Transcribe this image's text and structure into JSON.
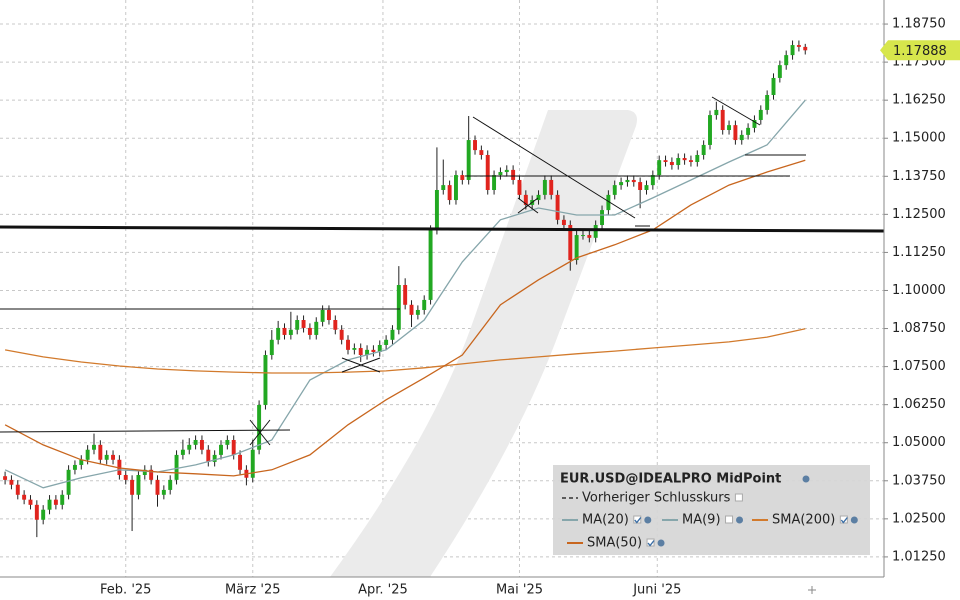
{
  "chart_data": {
    "type": "candlestick",
    "title": "EUR.USD@IDEALPRO MidPoint",
    "x": [
      0,
      1,
      2,
      3,
      4,
      5,
      6,
      7,
      8,
      9,
      10,
      11,
      12,
      13,
      14,
      15,
      16,
      17,
      18,
      19,
      20,
      21,
      22,
      23,
      24,
      25,
      26,
      27,
      28,
      29,
      30,
      31,
      32,
      33,
      34,
      35,
      36,
      37,
      38,
      39,
      40,
      41,
      42,
      43,
      44,
      45,
      46,
      47,
      48,
      49,
      50,
      51,
      52,
      53,
      54,
      55,
      56,
      57,
      58,
      59,
      60,
      61,
      62,
      63,
      64,
      65,
      66,
      67,
      68,
      69,
      70,
      71,
      72,
      73,
      74,
      75,
      76,
      77,
      78,
      79,
      80,
      81,
      82,
      83,
      84,
      85,
      86,
      87,
      88,
      89,
      90,
      91,
      92,
      93,
      94,
      95,
      96,
      97,
      98,
      99,
      100,
      101,
      102,
      103,
      104,
      105,
      106,
      107,
      108,
      109,
      110,
      111,
      112,
      113,
      114,
      115,
      116,
      117,
      118,
      119,
      120,
      121,
      122,
      123,
      124,
      125,
      126
    ],
    "open": [
      1.039,
      1.0378,
      1.0362,
      1.0329,
      1.0313,
      1.0296,
      1.0247,
      1.028,
      1.0313,
      1.0296,
      1.0329,
      1.0411,
      1.0427,
      1.0444,
      1.0477,
      1.0493,
      1.0444,
      1.046,
      1.0444,
      1.0394,
      1.0378,
      1.0329,
      1.0394,
      1.0411,
      1.0378,
      1.0329,
      1.0345,
      1.0378,
      1.046,
      1.0477,
      1.0493,
      1.0509,
      1.0477,
      1.0437,
      1.046,
      1.0493,
      1.0509,
      1.046,
      1.0411,
      1.0385,
      1.0477,
      1.0624,
      1.0788,
      1.0838,
      1.0877,
      1.0854,
      1.0871,
      1.0903,
      1.0877,
      1.0854,
      1.0897,
      1.0936,
      1.0903,
      1.0871,
      1.0838,
      1.0805,
      1.0811,
      1.0788,
      1.0805,
      1.0798,
      1.0821,
      1.0838,
      1.0871,
      1.1018,
      1.0953,
      1.092,
      1.0936,
      1.0969,
      1.1199,
      1.133,
      1.1346,
      1.1297,
      1.1379,
      1.1363,
      1.1494,
      1.1461,
      1.1445,
      1.133,
      1.1379,
      1.1389,
      1.1396,
      1.1363,
      1.1314,
      1.1281,
      1.1297,
      1.1314,
      1.1363,
      1.1314,
      1.1232,
      1.1215,
      1.11,
      1.1182,
      1.1182,
      1.1173,
      1.1215,
      1.1264,
      1.1314,
      1.1346,
      1.1356,
      1.1363,
      1.1356,
      1.133,
      1.1346,
      1.1379,
      1.1428,
      1.1422,
      1.1412,
      1.1435,
      1.1428,
      1.1422,
      1.1445,
      1.1478,
      1.1576,
      1.1593,
      1.1527,
      1.1543,
      1.1494,
      1.1511,
      1.1534,
      1.156,
      1.1593,
      1.1642,
      1.1698,
      1.174,
      1.1773,
      1.1806,
      1.18
    ],
    "high": [
      1.0405,
      1.0393,
      1.0377,
      1.0344,
      1.0328,
      1.0311,
      1.0295,
      1.0328,
      1.0328,
      1.0344,
      1.0426,
      1.0442,
      1.0459,
      1.0492,
      1.053,
      1.0508,
      1.0475,
      1.0475,
      1.0459,
      1.0409,
      1.0393,
      1.0409,
      1.0426,
      1.0426,
      1.0393,
      1.036,
      1.0393,
      1.0475,
      1.051,
      1.0515,
      1.0524,
      1.0524,
      1.0492,
      1.0475,
      1.0508,
      1.0524,
      1.0524,
      1.0475,
      1.0426,
      1.051,
      1.0639,
      1.0803,
      1.087,
      1.09,
      1.0892,
      1.093,
      1.0918,
      1.0918,
      1.0892,
      1.0912,
      1.0951,
      1.0951,
      1.0918,
      1.0886,
      1.0853,
      1.0826,
      1.0826,
      1.082,
      1.082,
      1.0836,
      1.0853,
      1.0886,
      1.108,
      1.104,
      1.0968,
      1.0951,
      1.0984,
      1.1214,
      1.147,
      1.143,
      1.1361,
      1.1394,
      1.1394,
      1.1573,
      1.1509,
      1.1476,
      1.146,
      1.1394,
      1.1404,
      1.1411,
      1.1411,
      1.1378,
      1.1329,
      1.1312,
      1.1329,
      1.1378,
      1.1378,
      1.1329,
      1.1247,
      1.123,
      1.1197,
      1.1197,
      1.1197,
      1.123,
      1.1279,
      1.1329,
      1.1361,
      1.1371,
      1.1378,
      1.1378,
      1.1371,
      1.1361,
      1.1394,
      1.1443,
      1.1443,
      1.1437,
      1.145,
      1.145,
      1.1443,
      1.146,
      1.1493,
      1.1591,
      1.162,
      1.1608,
      1.1558,
      1.1558,
      1.1526,
      1.1549,
      1.1575,
      1.1608,
      1.1657,
      1.1713,
      1.1755,
      1.1788,
      1.1821,
      1.1821,
      1.181
    ],
    "low": [
      1.0363,
      1.0347,
      1.0314,
      1.0298,
      1.0281,
      1.019,
      1.0232,
      1.0265,
      1.0281,
      1.0281,
      1.0314,
      1.0396,
      1.0412,
      1.0429,
      1.0462,
      1.0429,
      1.0429,
      1.0429,
      1.0379,
      1.0363,
      1.021,
      1.0314,
      1.0379,
      1.0363,
      1.029,
      1.0314,
      1.033,
      1.0363,
      1.0445,
      1.0462,
      1.0478,
      1.0462,
      1.0422,
      1.0422,
      1.0445,
      1.0478,
      1.0445,
      1.0396,
      1.036,
      1.037,
      1.0462,
      1.0609,
      1.0773,
      1.0823,
      1.0839,
      1.0839,
      1.0856,
      1.0862,
      1.0839,
      1.0839,
      1.0882,
      1.0888,
      1.0856,
      1.0823,
      1.079,
      1.079,
      1.0765,
      1.0773,
      1.0783,
      1.0783,
      1.0806,
      1.0823,
      1.0856,
      1.0938,
      1.088,
      1.0905,
      1.0921,
      1.0954,
      1.1184,
      1.1315,
      1.1282,
      1.1282,
      1.1348,
      1.1348,
      1.1446,
      1.143,
      1.1315,
      1.1315,
      1.1364,
      1.1374,
      1.1348,
      1.1299,
      1.1266,
      1.1266,
      1.1282,
      1.1299,
      1.1299,
      1.1217,
      1.12,
      1.1065,
      1.1085,
      1.1167,
      1.1158,
      1.1158,
      1.12,
      1.1249,
      1.1299,
      1.1331,
      1.1341,
      1.1341,
      1.127,
      1.1315,
      1.1331,
      1.1364,
      1.1407,
      1.1397,
      1.1397,
      1.1413,
      1.1407,
      1.1407,
      1.143,
      1.1463,
      1.1561,
      1.1512,
      1.1512,
      1.1479,
      1.1479,
      1.1496,
      1.1519,
      1.1545,
      1.1578,
      1.1627,
      1.1683,
      1.1725,
      1.1758,
      1.1785,
      1.1775
    ],
    "close": [
      1.0378,
      1.0362,
      1.0329,
      1.0313,
      1.0296,
      1.0247,
      1.028,
      1.0313,
      1.0296,
      1.0329,
      1.0411,
      1.0427,
      1.0444,
      1.0477,
      1.0493,
      1.0444,
      1.046,
      1.0444,
      1.0394,
      1.0378,
      1.0329,
      1.0394,
      1.0411,
      1.0378,
      1.0329,
      1.0345,
      1.0378,
      1.046,
      1.0477,
      1.0493,
      1.0509,
      1.0477,
      1.0437,
      1.046,
      1.0493,
      1.0509,
      1.046,
      1.0411,
      1.0385,
      1.0477,
      1.0624,
      1.0788,
      1.0838,
      1.0877,
      1.0854,
      1.0871,
      1.0903,
      1.0877,
      1.0854,
      1.0897,
      1.0936,
      1.0903,
      1.0871,
      1.0838,
      1.0805,
      1.0811,
      1.0788,
      1.0805,
      1.0798,
      1.0821,
      1.0838,
      1.0871,
      1.1018,
      1.0953,
      1.092,
      1.0936,
      1.0969,
      1.1199,
      1.133,
      1.1346,
      1.1297,
      1.1379,
      1.1363,
      1.1494,
      1.1461,
      1.1445,
      1.133,
      1.1379,
      1.1389,
      1.1396,
      1.1363,
      1.1314,
      1.1281,
      1.1297,
      1.1314,
      1.1363,
      1.1314,
      1.1232,
      1.1215,
      1.11,
      1.1182,
      1.1182,
      1.1173,
      1.1215,
      1.1264,
      1.1314,
      1.1346,
      1.1356,
      1.1363,
      1.1356,
      1.133,
      1.1346,
      1.1379,
      1.1428,
      1.1422,
      1.1412,
      1.1435,
      1.1428,
      1.1422,
      1.1445,
      1.1478,
      1.1576,
      1.1593,
      1.1527,
      1.1543,
      1.1494,
      1.1511,
      1.1534,
      1.156,
      1.1593,
      1.1642,
      1.1698,
      1.174,
      1.1773,
      1.1806,
      1.18,
      1.17888
    ],
    "up_color": "#22a822",
    "down_color": "#e0241e",
    "series": [
      {
        "name": "Vorheriger Schlusskurs",
        "color": "#333333",
        "dashed": true
      },
      {
        "name": "MA(20)",
        "color": "#86a6ab",
        "checked": true,
        "x": [
          0,
          6,
          12,
          18,
          24,
          30,
          36,
          42,
          48,
          54,
          60,
          66,
          72,
          78,
          84,
          90,
          96,
          102,
          108,
          114,
          120,
          126
        ],
        "values": [
          1.0411,
          1.0352,
          1.0385,
          1.0411,
          1.0404,
          1.0427,
          1.046,
          1.0509,
          1.0706,
          1.0772,
          1.0805,
          1.0903,
          1.1094,
          1.1232,
          1.1271,
          1.1248,
          1.1248,
          1.1304,
          1.1363,
          1.1422,
          1.1478,
          1.1625
        ]
      },
      {
        "name": "MA(9)",
        "color": "#86a6ab",
        "checked": false
      },
      {
        "name": "SMA(200)",
        "color": "#d27a2c",
        "checked": true,
        "x": [
          0,
          6,
          12,
          18,
          24,
          30,
          36,
          42,
          48,
          54,
          60,
          66,
          72,
          78,
          84,
          90,
          96,
          102,
          108,
          114,
          120,
          126
        ],
        "values": [
          1.0805,
          1.0782,
          1.0765,
          1.0752,
          1.0742,
          1.0736,
          1.0732,
          1.0729,
          1.0729,
          1.0732,
          1.0736,
          1.0746,
          1.0759,
          1.0772,
          1.0782,
          1.0792,
          1.0801,
          1.0811,
          1.0821,
          1.0831,
          1.0847,
          1.0874
        ]
      },
      {
        "name": "SMA(50)",
        "color": "#c8661e",
        "checked": true,
        "x": [
          0,
          6,
          12,
          18,
          24,
          30,
          36,
          42,
          48,
          54,
          60,
          66,
          72,
          78,
          84,
          90,
          96,
          102,
          108,
          114,
          120,
          126
        ],
        "values": [
          1.0559,
          1.0493,
          1.0444,
          1.0417,
          1.0404,
          1.0398,
          1.0391,
          1.0411,
          1.046,
          1.0559,
          1.0641,
          1.0713,
          1.0788,
          1.0953,
          1.1035,
          1.1107,
          1.115,
          1.1199,
          1.1281,
          1.1346,
          1.1389,
          1.1428
        ]
      }
    ],
    "last_price": 1.17888,
    "xlim": [
      -0.8,
      138.4
    ],
    "xticks": [
      {
        "value": 19,
        "label": "Feb. '25"
      },
      {
        "value": 39,
        "label": "März '25"
      },
      {
        "value": 59.5,
        "label": "Apr. '25"
      },
      {
        "value": 81,
        "label": "Mai '25"
      },
      {
        "value": 102.7,
        "label": "Juni '25"
      }
    ],
    "ylim": [
      1.0059,
      1.1954
    ],
    "yticks": [
      {
        "value": 1.0125,
        "label": "1.01250"
      },
      {
        "value": 1.025,
        "label": "1.02500"
      },
      {
        "value": 1.0375,
        "label": "1.03750"
      },
      {
        "value": 1.05,
        "label": "1.05000"
      },
      {
        "value": 1.0625,
        "label": "1.06250"
      },
      {
        "value": 1.075,
        "label": "1.07500"
      },
      {
        "value": 1.0875,
        "label": "1.08750"
      },
      {
        "value": 1.1,
        "label": "1.10000"
      },
      {
        "value": 1.1125,
        "label": "1.11250"
      },
      {
        "value": 1.125,
        "label": "1.12500"
      },
      {
        "value": 1.1375,
        "label": "1.13750"
      },
      {
        "value": 1.15,
        "label": "1.15000"
      },
      {
        "value": 1.1625,
        "label": "1.16250"
      },
      {
        "value": 1.175,
        "label": "1.17500"
      },
      {
        "value": 1.1875,
        "label": "1.18750"
      }
    ],
    "grid": true
  }
}
